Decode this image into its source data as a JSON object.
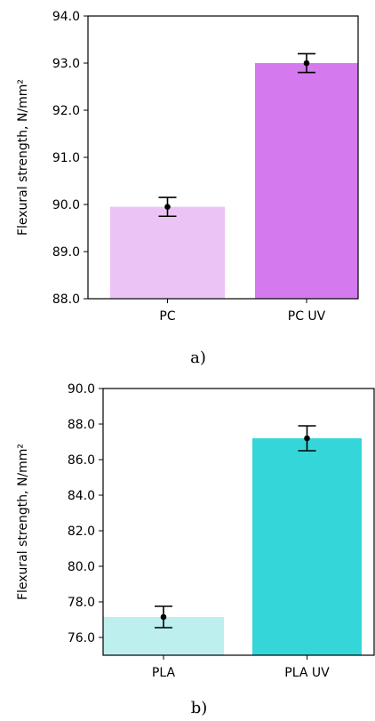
{
  "chart_data": [
    {
      "type": "bar",
      "categories": [
        "PC",
        "PC UV"
      ],
      "values": [
        89.95,
        93.0
      ],
      "errors": [
        0.2,
        0.2
      ],
      "colors": [
        "#ecc3f5",
        "#d579ef"
      ],
      "ylabel": "Flexural strength, N/mm²",
      "ylim": [
        88.0,
        94.0
      ],
      "yticks": [
        88.0,
        89.0,
        90.0,
        91.0,
        92.0,
        93.0,
        94.0
      ],
      "ytick_labels": [
        "88.0",
        "89.0",
        "90.0",
        "91.0",
        "92.0",
        "93.0",
        "94.0"
      ],
      "caption": "a)"
    },
    {
      "type": "bar",
      "categories": [
        "PLA",
        "PLA UV"
      ],
      "values": [
        77.15,
        87.2
      ],
      "errors": [
        0.6,
        0.7
      ],
      "colors": [
        "#bcefee",
        "#35d6d9"
      ],
      "ylabel": "Flexural strength, N/mm²",
      "ylim": [
        75.0,
        90.0
      ],
      "yticks": [
        76.0,
        78.0,
        80.0,
        82.0,
        84.0,
        86.0,
        88.0,
        90.0
      ],
      "ytick_labels": [
        "76.0",
        "78.0",
        "80.0",
        "82.0",
        "84.0",
        "86.0",
        "88.0",
        "90.0"
      ],
      "caption": "b)"
    }
  ]
}
